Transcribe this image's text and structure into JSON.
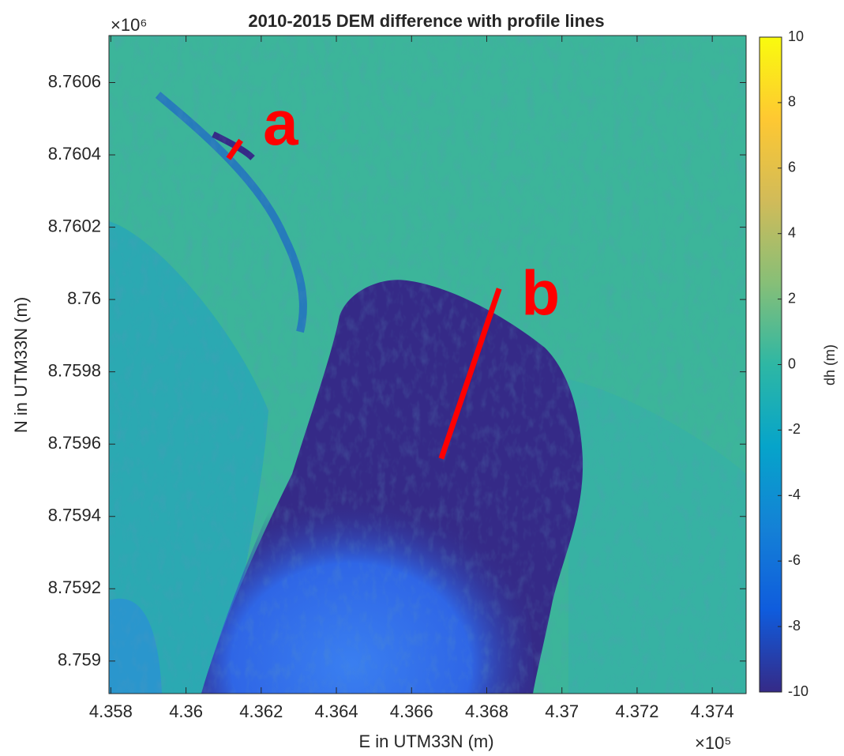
{
  "chart_data": {
    "type": "heatmap",
    "title": "2010-2015 DEM  difference with profile lines",
    "xlabel": "E in UTM33N (m)",
    "ylabel": "N in UTM33N (m)",
    "x_multiplier": "×10⁵",
    "y_multiplier": "×10⁶",
    "xlim": [
      4.35795,
      4.3749
    ],
    "ylim": [
      8.75891,
      8.76073
    ],
    "xticks": [
      4.358,
      4.36,
      4.362,
      4.364,
      4.366,
      4.368,
      4.37,
      4.372,
      4.374
    ],
    "yticks": [
      8.759,
      8.7592,
      8.7594,
      8.7596,
      8.7598,
      8.76,
      8.7602,
      8.7604,
      8.7606
    ],
    "colorbar": {
      "label": "dh (m)",
      "lim": [
        -10,
        10
      ],
      "ticks": [
        -10,
        -8,
        -6,
        -4,
        -2,
        0,
        2,
        4,
        6,
        8,
        10
      ],
      "colormap": [
        "#352a87",
        "#0f5cdd",
        "#1481d6",
        "#06a4ca",
        "#2eb7a4",
        "#87bf77",
        "#d1bb59",
        "#fec832",
        "#f9fb0e"
      ]
    },
    "profiles": [
      {
        "name": "a",
        "x": [
          4.36113,
          4.36146
        ],
        "y": [
          8.76039,
          8.76044
        ],
        "color": "#ff0000"
      },
      {
        "name": "b",
        "x": [
          4.36679,
          4.36833
        ],
        "y": [
          8.75956,
          8.76003
        ],
        "color": "#ff0000"
      }
    ]
  }
}
